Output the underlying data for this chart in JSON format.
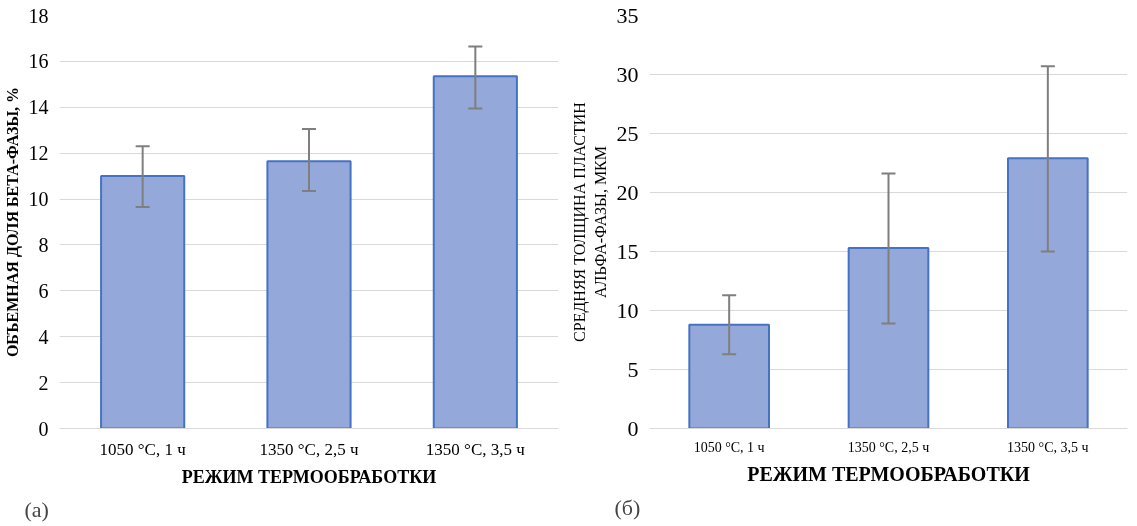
{
  "chart_data": [
    {
      "type": "bar",
      "xlabel": "РЕЖИМ ТЕРМООБРАБОТКИ",
      "ylabel": "ОБЪЕМНАЯ ДОЛЯ БЕТА-ФАЗЫ, %",
      "categories": [
        "1050 °C, 1 ч",
        "1350 °C, 2,5 ч",
        "1350 °C, 3,5 ч"
      ],
      "values": [
        11.0,
        11.65,
        15.35
      ],
      "color": "#95a8da",
      "errors": [
        [
          9.65,
          12.3
        ],
        [
          10.35,
          13.05
        ],
        [
          13.95,
          16.65
        ]
      ],
      "ylim": [
        0,
        18
      ],
      "yticks": [
        0,
        2,
        4,
        6,
        8,
        10,
        12,
        14,
        16,
        18
      ],
      "grid": "y",
      "annotations": [
        "(a)"
      ]
    },
    {
      "type": "bar",
      "xlabel": "РЕЖИМ ТЕРМООБРАБОТКИ",
      "ylabel": "СРЕДНЯЯ ТОЛЩИНА ПЛАСТИН\nАЛЬФА-ФАЗЫ, МКМ",
      "categories": [
        "1050 °C, 1 ч",
        "1350 °C, 2,5 ч",
        "1350 °C, 3,5 ч"
      ],
      "values": [
        8.8,
        15.3,
        22.9
      ],
      "color": "#95a8da",
      "errors": [
        [
          6.3,
          11.3
        ],
        [
          8.9,
          21.6
        ],
        [
          15.0,
          30.7
        ]
      ],
      "ylim": [
        0,
        35
      ],
      "yticks": [
        0,
        5,
        10,
        15,
        20,
        25,
        30,
        35
      ],
      "grid": "y",
      "annotations": [
        "(б)"
      ]
    }
  ]
}
